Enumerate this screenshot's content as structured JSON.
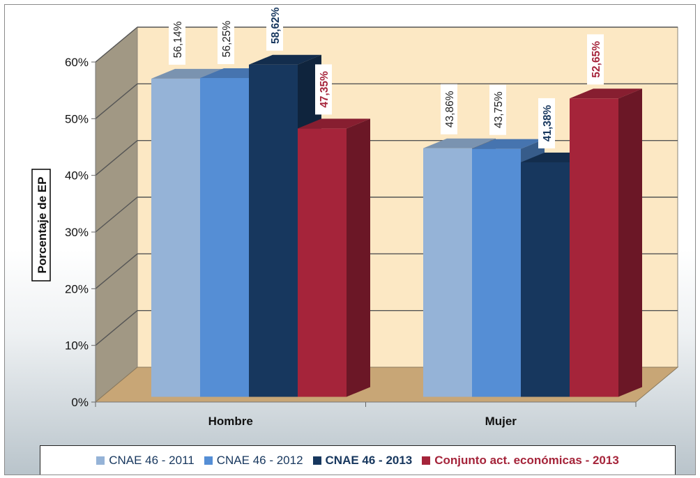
{
  "chart_data": {
    "type": "bar",
    "categories": [
      "Hombre",
      "Mujer"
    ],
    "ylabel": "Porcentaje de EP",
    "ylim": [
      0,
      60
    ],
    "yticks": [
      "0%",
      "10%",
      "20%",
      "30%",
      "40%",
      "50%",
      "60%"
    ],
    "grid": true,
    "legend_position": "bottom",
    "series": [
      {
        "name": "CNAE 46 - 2011",
        "values": [
          56.14,
          43.86
        ],
        "labels": [
          "56,14%",
          "43,86%"
        ],
        "color": "#95b3d7",
        "bold": false
      },
      {
        "name": "CNAE 46 - 2012",
        "values": [
          56.25,
          43.75
        ],
        "labels": [
          "56,25%",
          "43,75%"
        ],
        "color": "#558ed5",
        "bold": false
      },
      {
        "name": "CNAE 46 - 2013",
        "values": [
          58.62,
          41.38
        ],
        "labels": [
          "58,62%",
          "41,38%"
        ],
        "color": "#17375e",
        "bold": true
      },
      {
        "name": "Conjunto act. económicas - 2013",
        "values": [
          47.35,
          52.65
        ],
        "labels": [
          "47,35%",
          "52,65%"
        ],
        "color": "#a5243a",
        "bold": true,
        "text_color": "#a5243a"
      }
    ]
  }
}
